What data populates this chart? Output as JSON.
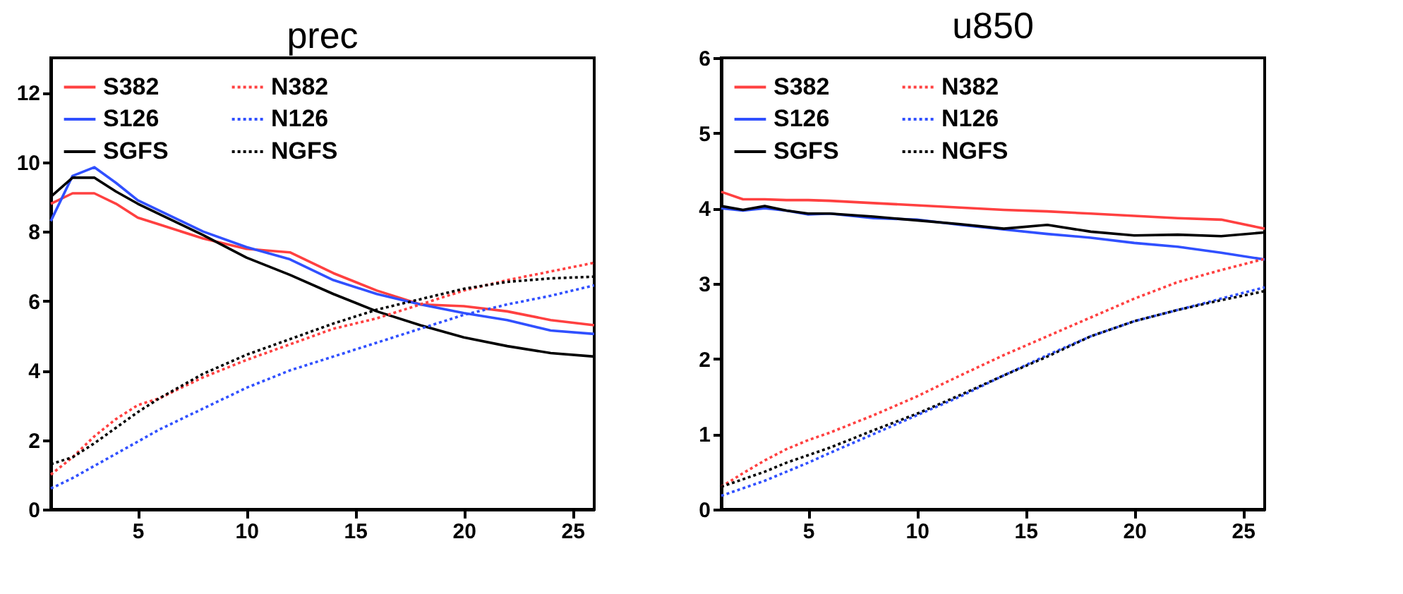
{
  "chart_data": [
    {
      "type": "line",
      "title": "prec",
      "x": [
        1,
        2,
        3,
        4,
        5,
        6,
        8,
        10,
        12,
        14,
        16,
        18,
        20,
        22,
        24,
        26
      ],
      "xlim": [
        1,
        26
      ],
      "xticks": [
        5,
        10,
        15,
        20,
        25
      ],
      "ylim": [
        0,
        13
      ],
      "yticks": [
        0,
        2,
        4,
        6,
        8,
        10,
        12
      ],
      "grid": false,
      "legend": "top left",
      "marker": "none",
      "series": [
        {
          "name": "S382",
          "color": "#ff4040",
          "line_style": "solid",
          "values": [
            8.8,
            9.1,
            9.1,
            8.8,
            8.4,
            8.2,
            7.8,
            7.5,
            7.4,
            6.8,
            6.3,
            5.9,
            5.85,
            5.7,
            5.45,
            5.3
          ]
        },
        {
          "name": "S126",
          "color": "#3050ff",
          "line_style": "solid",
          "values": [
            8.3,
            9.6,
            9.85,
            9.4,
            8.9,
            8.6,
            8.0,
            7.55,
            7.2,
            6.6,
            6.2,
            5.9,
            5.65,
            5.45,
            5.15,
            5.05
          ]
        },
        {
          "name": "SGFS",
          "color": "#000000",
          "line_style": "solid",
          "values": [
            9.0,
            9.55,
            9.55,
            9.15,
            8.8,
            8.5,
            7.9,
            7.25,
            6.75,
            6.2,
            5.7,
            5.3,
            4.95,
            4.7,
            4.5,
            4.4
          ]
        },
        {
          "name": "N382",
          "color": "#ff4040",
          "line_style": "dotted",
          "values": [
            1.0,
            1.5,
            2.1,
            2.6,
            3.0,
            3.2,
            3.8,
            4.3,
            4.75,
            5.2,
            5.5,
            5.9,
            6.3,
            6.6,
            6.85,
            7.1
          ]
        },
        {
          "name": "N126",
          "color": "#3050ff",
          "line_style": "dotted",
          "values": [
            0.6,
            0.9,
            1.25,
            1.6,
            1.95,
            2.3,
            2.9,
            3.5,
            4.0,
            4.4,
            4.8,
            5.2,
            5.6,
            5.9,
            6.15,
            6.45
          ]
        },
        {
          "name": "NGFS",
          "color": "#000000",
          "line_style": "dotted",
          "values": [
            1.3,
            1.5,
            1.9,
            2.35,
            2.8,
            3.2,
            3.9,
            4.45,
            4.9,
            5.35,
            5.75,
            6.05,
            6.35,
            6.55,
            6.65,
            6.7
          ]
        }
      ]
    },
    {
      "type": "line",
      "title": "u850",
      "x": [
        1,
        2,
        3,
        4,
        5,
        6,
        8,
        10,
        12,
        14,
        16,
        18,
        20,
        22,
        24,
        26
      ],
      "xlim": [
        1,
        26
      ],
      "xticks": [
        5,
        10,
        15,
        20,
        25
      ],
      "ylim": [
        0,
        6
      ],
      "yticks": [
        0,
        1,
        2,
        3,
        4,
        5,
        6
      ],
      "grid": false,
      "legend": "top left",
      "marker": "none",
      "series": [
        {
          "name": "S382",
          "color": "#ff4040",
          "line_style": "solid",
          "values": [
            4.22,
            4.12,
            4.12,
            4.11,
            4.11,
            4.1,
            4.07,
            4.04,
            4.01,
            3.98,
            3.96,
            3.93,
            3.9,
            3.87,
            3.85,
            3.73
          ]
        },
        {
          "name": "S126",
          "color": "#3050ff",
          "line_style": "solid",
          "values": [
            4.0,
            3.97,
            4.0,
            3.97,
            3.92,
            3.93,
            3.87,
            3.85,
            3.78,
            3.72,
            3.66,
            3.61,
            3.54,
            3.49,
            3.41,
            3.32
          ]
        },
        {
          "name": "SGFS",
          "color": "#000000",
          "line_style": "solid",
          "values": [
            4.03,
            3.98,
            4.03,
            3.97,
            3.93,
            3.93,
            3.89,
            3.84,
            3.79,
            3.73,
            3.78,
            3.69,
            3.64,
            3.65,
            3.63,
            3.68
          ]
        },
        {
          "name": "N382",
          "color": "#ff4040",
          "line_style": "dotted",
          "values": [
            0.3,
            0.48,
            0.65,
            0.8,
            0.92,
            1.02,
            1.25,
            1.5,
            1.78,
            2.05,
            2.3,
            2.55,
            2.8,
            3.02,
            3.18,
            3.33
          ]
        },
        {
          "name": "N126",
          "color": "#3050ff",
          "line_style": "dotted",
          "values": [
            0.18,
            0.28,
            0.38,
            0.5,
            0.62,
            0.75,
            1.0,
            1.25,
            1.5,
            1.78,
            2.05,
            2.3,
            2.5,
            2.65,
            2.8,
            2.95
          ]
        },
        {
          "name": "NGFS",
          "color": "#000000",
          "line_style": "dotted",
          "values": [
            0.3,
            0.4,
            0.5,
            0.62,
            0.72,
            0.82,
            1.05,
            1.27,
            1.52,
            1.78,
            2.03,
            2.3,
            2.5,
            2.65,
            2.78,
            2.9
          ]
        }
      ]
    }
  ]
}
